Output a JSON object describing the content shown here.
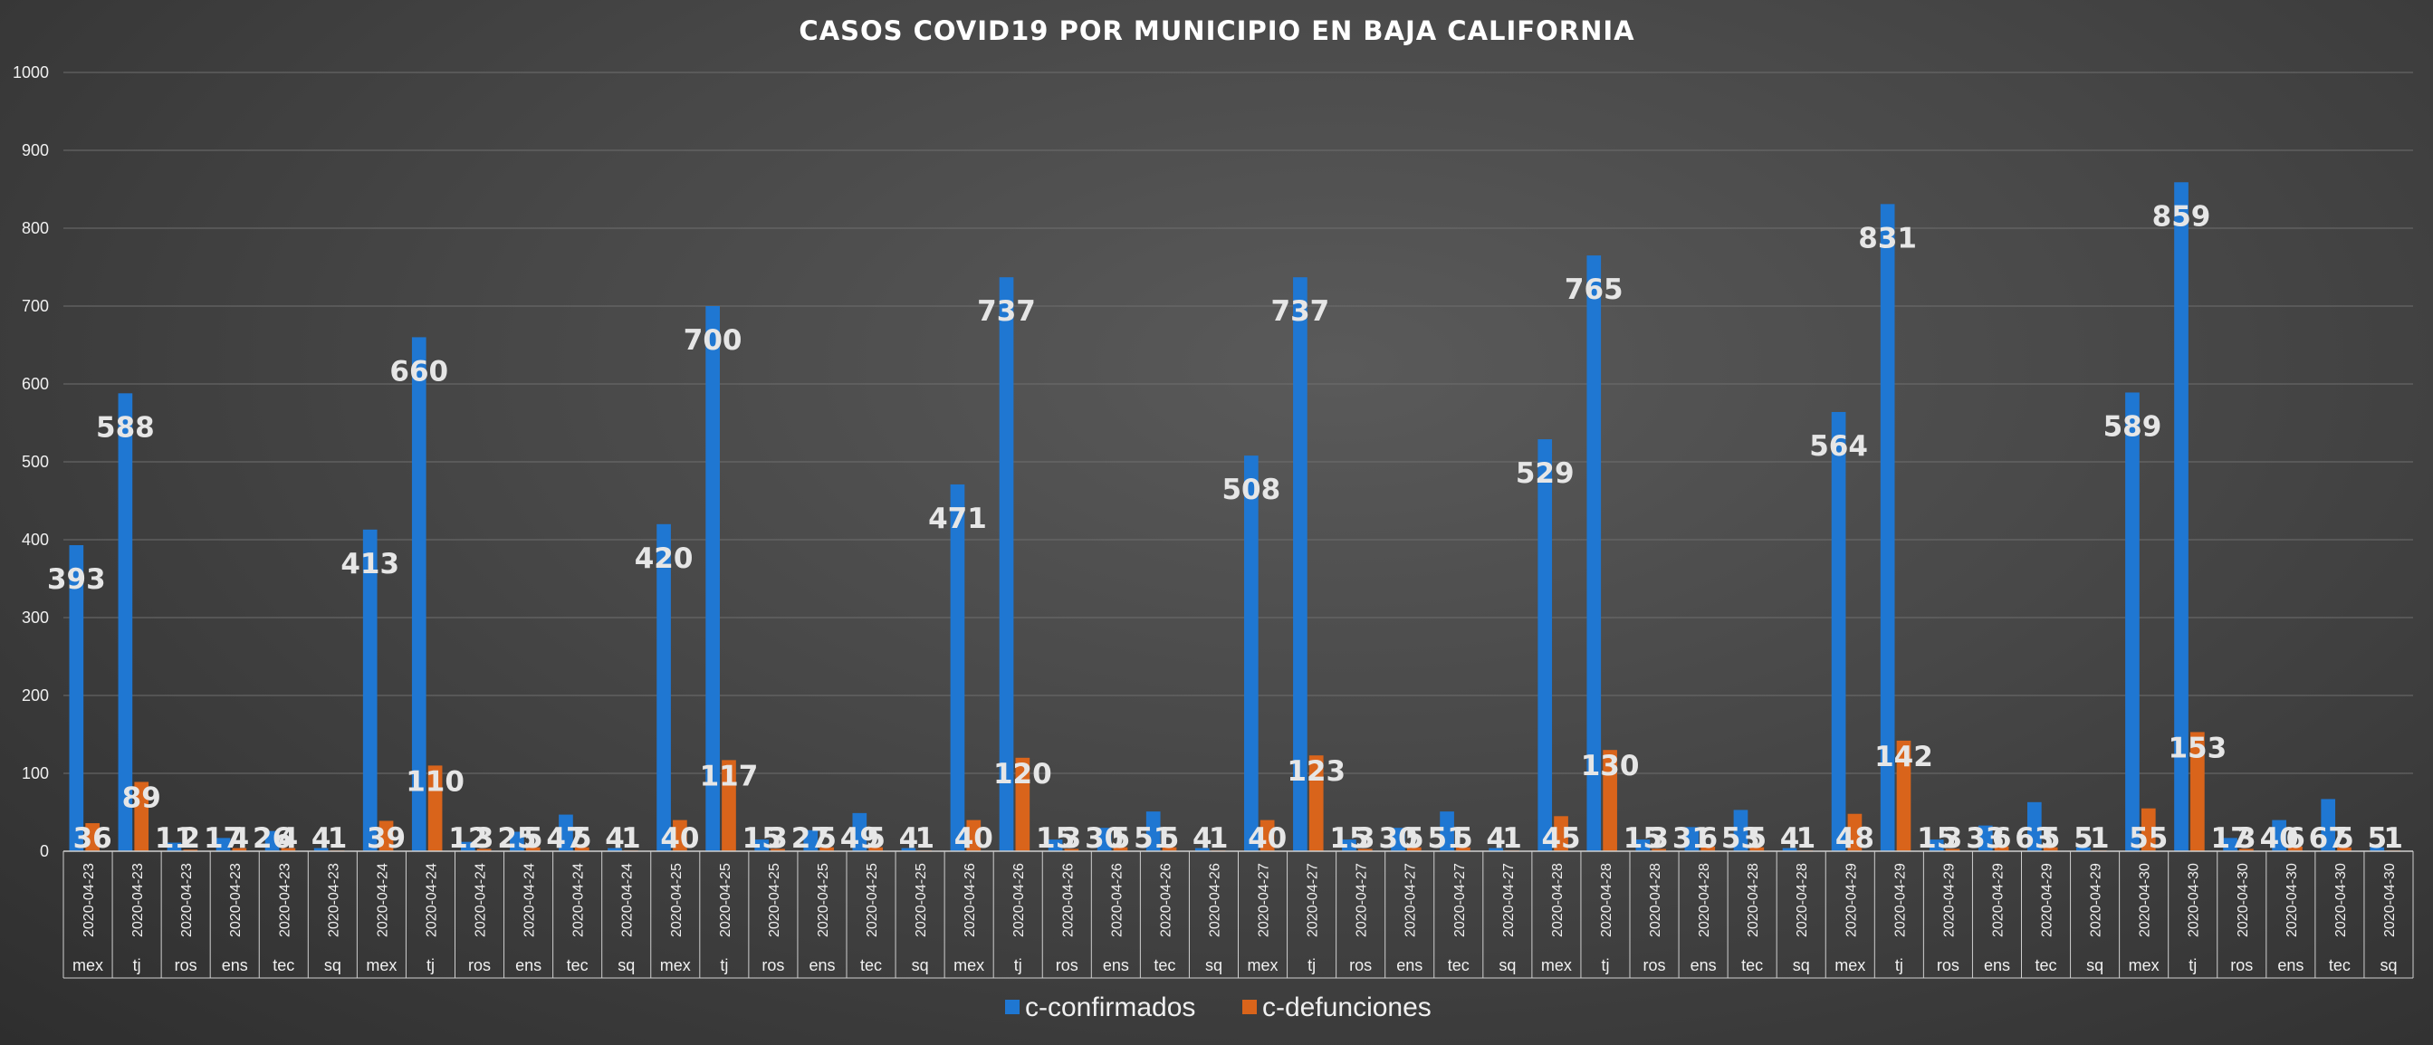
{
  "chart_data": {
    "type": "bar",
    "title": "CASOS COVID19 POR MUNICIPIO EN BAJA CALIFORNIA",
    "xlabel": "",
    "ylabel": "",
    "ylim": [
      0,
      1000
    ],
    "yticks": [
      0,
      100,
      200,
      300,
      400,
      500,
      600,
      700,
      800,
      900,
      1000
    ],
    "grid": true,
    "legend_position": "bottom",
    "colors": {
      "c-confirmados": "#1f77d2",
      "c-defunciones": "#d9641b"
    },
    "categories": [
      {
        "date": "2020-04-23",
        "mun": "mex"
      },
      {
        "date": "2020-04-23",
        "mun": "tj"
      },
      {
        "date": "2020-04-23",
        "mun": "ros"
      },
      {
        "date": "2020-04-23",
        "mun": "ens"
      },
      {
        "date": "2020-04-23",
        "mun": "tec"
      },
      {
        "date": "2020-04-23",
        "mun": "sq"
      },
      {
        "date": "2020-04-24",
        "mun": "mex"
      },
      {
        "date": "2020-04-24",
        "mun": "tj"
      },
      {
        "date": "2020-04-24",
        "mun": "ros"
      },
      {
        "date": "2020-04-24",
        "mun": "ens"
      },
      {
        "date": "2020-04-24",
        "mun": "tec"
      },
      {
        "date": "2020-04-24",
        "mun": "sq"
      },
      {
        "date": "2020-04-25",
        "mun": "mex"
      },
      {
        "date": "2020-04-25",
        "mun": "tj"
      },
      {
        "date": "2020-04-25",
        "mun": "ros"
      },
      {
        "date": "2020-04-25",
        "mun": "ens"
      },
      {
        "date": "2020-04-25",
        "mun": "tec"
      },
      {
        "date": "2020-04-25",
        "mun": "sq"
      },
      {
        "date": "2020-04-26",
        "mun": "mex"
      },
      {
        "date": "2020-04-26",
        "mun": "tj"
      },
      {
        "date": "2020-04-26",
        "mun": "ros"
      },
      {
        "date": "2020-04-26",
        "mun": "ens"
      },
      {
        "date": "2020-04-26",
        "mun": "tec"
      },
      {
        "date": "2020-04-26",
        "mun": "sq"
      },
      {
        "date": "2020-04-27",
        "mun": "mex"
      },
      {
        "date": "2020-04-27",
        "mun": "tj"
      },
      {
        "date": "2020-04-27",
        "mun": "ros"
      },
      {
        "date": "2020-04-27",
        "mun": "ens"
      },
      {
        "date": "2020-04-27",
        "mun": "tec"
      },
      {
        "date": "2020-04-27",
        "mun": "sq"
      },
      {
        "date": "2020-04-28",
        "mun": "mex"
      },
      {
        "date": "2020-04-28",
        "mun": "tj"
      },
      {
        "date": "2020-04-28",
        "mun": "ros"
      },
      {
        "date": "2020-04-28",
        "mun": "ens"
      },
      {
        "date": "2020-04-28",
        "mun": "tec"
      },
      {
        "date": "2020-04-28",
        "mun": "sq"
      },
      {
        "date": "2020-04-29",
        "mun": "mex"
      },
      {
        "date": "2020-04-29",
        "mun": "tj"
      },
      {
        "date": "2020-04-29",
        "mun": "ros"
      },
      {
        "date": "2020-04-29",
        "mun": "ens"
      },
      {
        "date": "2020-04-29",
        "mun": "tec"
      },
      {
        "date": "2020-04-29",
        "mun": "sq"
      },
      {
        "date": "2020-04-30",
        "mun": "mex"
      },
      {
        "date": "2020-04-30",
        "mun": "tj"
      },
      {
        "date": "2020-04-30",
        "mun": "ros"
      },
      {
        "date": "2020-04-30",
        "mun": "ens"
      },
      {
        "date": "2020-04-30",
        "mun": "tec"
      },
      {
        "date": "2020-04-30",
        "mun": "sq"
      }
    ],
    "series": [
      {
        "name": "c-confirmados",
        "values": [
          393,
          588,
          11,
          17,
          26,
          4,
          413,
          660,
          12,
          25,
          47,
          4,
          420,
          700,
          15,
          27,
          49,
          4,
          471,
          737,
          15,
          30,
          51,
          4,
          508,
          737,
          15,
          30,
          51,
          4,
          529,
          765,
          15,
          31,
          53,
          4,
          564,
          831,
          15,
          33,
          63,
          5,
          589,
          859,
          17,
          40,
          67,
          5
        ]
      },
      {
        "name": "c-defunciones",
        "values": [
          36,
          89,
          2,
          4,
          4,
          1,
          39,
          110,
          3,
          5,
          5,
          1,
          40,
          117,
          3,
          5,
          5,
          1,
          40,
          120,
          3,
          5,
          5,
          1,
          40,
          123,
          3,
          5,
          5,
          1,
          45,
          130,
          3,
          6,
          5,
          1,
          48,
          142,
          3,
          6,
          5,
          1,
          55,
          153,
          3,
          6,
          5,
          1
        ]
      }
    ]
  }
}
